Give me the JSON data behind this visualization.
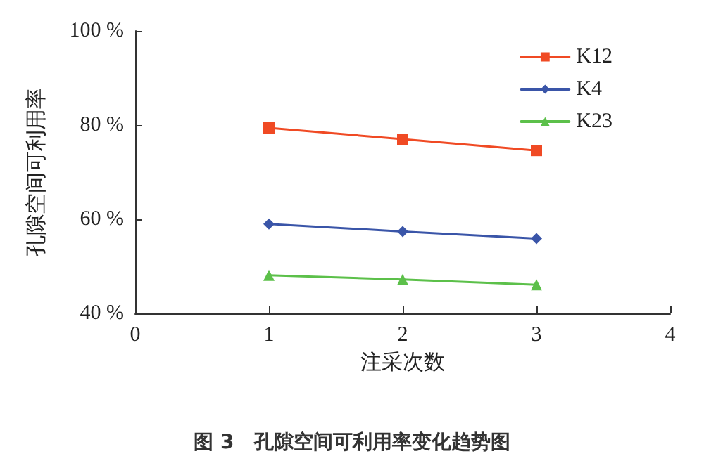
{
  "chart_data": {
    "type": "line",
    "title": "图 3　孔隙空间可利用率变化趋势图",
    "xlabel": "注采次数",
    "ylabel": "孔隙空间可利用率",
    "x": [
      1,
      2,
      3
    ],
    "series": [
      {
        "name": "K12",
        "color": "#f04a24",
        "marker": "square",
        "values": [
          79.4,
          77.0,
          74.6
        ]
      },
      {
        "name": "K4",
        "color": "#3a55a8",
        "marker": "diamond",
        "values": [
          59.0,
          57.4,
          55.9
        ]
      },
      {
        "name": "K23",
        "color": "#5cc04a",
        "marker": "triangle",
        "values": [
          48.1,
          47.2,
          46.1
        ]
      }
    ],
    "xlim": [
      0,
      4
    ],
    "xticks": [
      0,
      1,
      2,
      3,
      4
    ],
    "ylim": [
      40,
      100
    ],
    "yticks": [
      {
        "value": 40,
        "label": "40 %"
      },
      {
        "value": 60,
        "label": "60 %"
      },
      {
        "value": 80,
        "label": "80 %"
      },
      {
        "value": 100,
        "label": "100 %"
      }
    ],
    "grid": false,
    "legend": "top right",
    "line_style": "solid"
  }
}
